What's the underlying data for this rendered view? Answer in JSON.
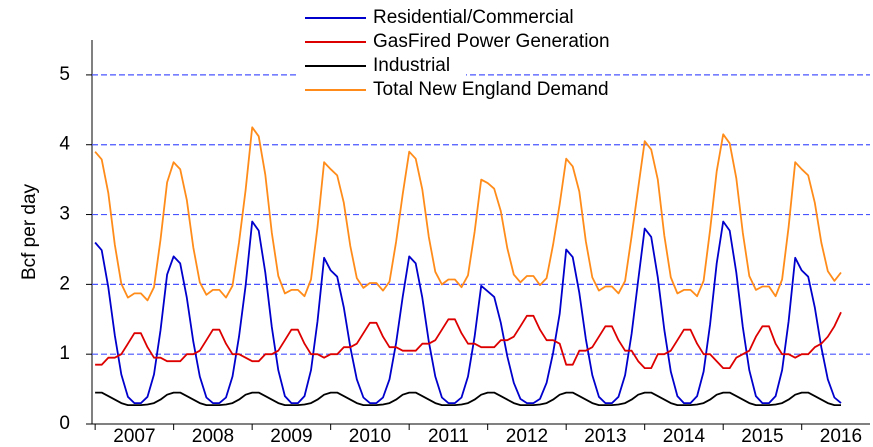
{
  "chart_data": {
    "type": "line",
    "y_label": "Bcf per day",
    "x": [
      2007.0,
      2007.083,
      2007.167,
      2007.25,
      2007.333,
      2007.417,
      2007.5,
      2007.583,
      2007.667,
      2007.75,
      2007.833,
      2007.917,
      2008.0,
      2008.083,
      2008.167,
      2008.25,
      2008.333,
      2008.417,
      2008.5,
      2008.583,
      2008.667,
      2008.75,
      2008.833,
      2008.917,
      2009.0,
      2009.083,
      2009.167,
      2009.25,
      2009.333,
      2009.417,
      2009.5,
      2009.583,
      2009.667,
      2009.75,
      2009.833,
      2009.917,
      2010.0,
      2010.083,
      2010.167,
      2010.25,
      2010.333,
      2010.417,
      2010.5,
      2010.583,
      2010.667,
      2010.75,
      2010.833,
      2010.917,
      2011.0,
      2011.083,
      2011.167,
      2011.25,
      2011.333,
      2011.417,
      2011.5,
      2011.583,
      2011.667,
      2011.75,
      2011.833,
      2011.917,
      2012.0,
      2012.083,
      2012.167,
      2012.25,
      2012.333,
      2012.417,
      2012.5,
      2012.583,
      2012.667,
      2012.75,
      2012.833,
      2012.917,
      2013.0,
      2013.083,
      2013.167,
      2013.25,
      2013.333,
      2013.417,
      2013.5,
      2013.583,
      2013.667,
      2013.75,
      2013.833,
      2013.917,
      2014.0,
      2014.083,
      2014.167,
      2014.25,
      2014.333,
      2014.417,
      2014.5,
      2014.583,
      2014.667,
      2014.75,
      2014.833,
      2014.917,
      2015.0,
      2015.083,
      2015.167,
      2015.25,
      2015.333,
      2015.417,
      2015.5,
      2015.583,
      2015.667,
      2015.75,
      2015.833,
      2015.917,
      2016.0,
      2016.083,
      2016.167,
      2016.25,
      2016.333,
      2016.417,
      2016.5
    ],
    "series": [
      {
        "name": "Residential/Commercial",
        "color": "#0000cc",
        "values": [
          2.6,
          2.49,
          1.96,
          1.27,
          0.71,
          0.39,
          0.3,
          0.3,
          0.39,
          0.71,
          1.34,
          2.14,
          2.4,
          2.3,
          1.81,
          1.18,
          0.68,
          0.38,
          0.3,
          0.3,
          0.38,
          0.68,
          1.25,
          1.98,
          2.9,
          2.77,
          2.17,
          1.39,
          0.77,
          0.4,
          0.3,
          0.3,
          0.4,
          0.77,
          1.47,
          2.38,
          2.2,
          2.11,
          1.67,
          1.1,
          0.64,
          0.38,
          0.3,
          0.3,
          0.38,
          0.64,
          1.16,
          1.82,
          2.4,
          2.3,
          1.81,
          1.18,
          0.68,
          0.38,
          0.3,
          0.3,
          0.38,
          0.68,
          1.25,
          1.98,
          1.9,
          1.82,
          1.45,
          0.97,
          0.59,
          0.36,
          0.3,
          0.3,
          0.36,
          0.59,
          1.02,
          1.58,
          2.5,
          2.39,
          1.88,
          1.22,
          0.7,
          0.39,
          0.3,
          0.3,
          0.39,
          0.7,
          1.29,
          2.06,
          2.8,
          2.68,
          2.1,
          1.35,
          0.75,
          0.4,
          0.3,
          0.3,
          0.4,
          0.75,
          1.43,
          2.3,
          2.9,
          2.77,
          2.17,
          1.39,
          0.77,
          0.4,
          0.3,
          0.3,
          0.4,
          0.77,
          1.47,
          2.38,
          2.2,
          2.11,
          1.67,
          1.1,
          0.64,
          0.38,
          0.3
        ]
      },
      {
        "name": "GasFired Power Generation",
        "color": "#dd0000",
        "values": [
          0.85,
          0.85,
          0.95,
          0.95,
          1.0,
          1.15,
          1.3,
          1.3,
          1.1,
          0.95,
          0.95,
          0.9,
          0.9,
          0.9,
          1.0,
          1.0,
          1.05,
          1.2,
          1.35,
          1.35,
          1.15,
          1.0,
          1.0,
          0.95,
          0.9,
          0.9,
          1.0,
          1.0,
          1.05,
          1.2,
          1.35,
          1.35,
          1.15,
          1.0,
          1.0,
          0.95,
          1.0,
          1.0,
          1.1,
          1.1,
          1.15,
          1.3,
          1.45,
          1.45,
          1.25,
          1.1,
          1.1,
          1.05,
          1.05,
          1.05,
          1.15,
          1.15,
          1.2,
          1.35,
          1.5,
          1.5,
          1.3,
          1.15,
          1.15,
          1.1,
          1.1,
          1.1,
          1.2,
          1.2,
          1.25,
          1.4,
          1.55,
          1.55,
          1.35,
          1.2,
          1.2,
          1.15,
          0.85,
          0.85,
          1.05,
          1.05,
          1.1,
          1.25,
          1.4,
          1.4,
          1.2,
          1.05,
          1.05,
          0.9,
          0.8,
          0.8,
          1.0,
          1.0,
          1.05,
          1.2,
          1.35,
          1.35,
          1.15,
          1.0,
          1.0,
          0.9,
          0.8,
          0.8,
          0.95,
          1.0,
          1.05,
          1.25,
          1.4,
          1.4,
          1.15,
          1.0,
          1.0,
          0.95,
          1.0,
          1.0,
          1.1,
          1.15,
          1.25,
          1.4,
          1.6
        ]
      },
      {
        "name": "Industrial",
        "color": "#000000",
        "values": [
          0.45,
          0.45,
          0.4,
          0.35,
          0.3,
          0.27,
          0.27,
          0.27,
          0.28,
          0.3,
          0.35,
          0.42,
          0.45,
          0.45,
          0.4,
          0.35,
          0.3,
          0.27,
          0.27,
          0.27,
          0.28,
          0.3,
          0.35,
          0.42,
          0.45,
          0.45,
          0.4,
          0.35,
          0.3,
          0.27,
          0.27,
          0.27,
          0.28,
          0.3,
          0.35,
          0.42,
          0.45,
          0.45,
          0.4,
          0.35,
          0.3,
          0.27,
          0.27,
          0.27,
          0.28,
          0.3,
          0.35,
          0.42,
          0.45,
          0.45,
          0.4,
          0.35,
          0.3,
          0.27,
          0.27,
          0.27,
          0.28,
          0.3,
          0.35,
          0.42,
          0.45,
          0.45,
          0.4,
          0.35,
          0.3,
          0.27,
          0.27,
          0.27,
          0.28,
          0.3,
          0.35,
          0.42,
          0.45,
          0.45,
          0.4,
          0.35,
          0.3,
          0.27,
          0.27,
          0.27,
          0.28,
          0.3,
          0.35,
          0.42,
          0.45,
          0.45,
          0.4,
          0.35,
          0.3,
          0.27,
          0.27,
          0.27,
          0.28,
          0.3,
          0.35,
          0.42,
          0.45,
          0.45,
          0.4,
          0.35,
          0.3,
          0.27,
          0.27,
          0.27,
          0.28,
          0.3,
          0.35,
          0.42,
          0.45,
          0.45,
          0.4,
          0.35,
          0.3,
          0.27,
          0.27
        ]
      },
      {
        "name": "Total New England Demand",
        "color": "#ff8c1a",
        "values": [
          3.9,
          3.79,
          3.31,
          2.57,
          2.01,
          1.81,
          1.87,
          1.87,
          1.77,
          1.96,
          2.64,
          3.46,
          3.75,
          3.65,
          3.21,
          2.53,
          2.03,
          1.85,
          1.92,
          1.92,
          1.81,
          1.98,
          2.6,
          3.35,
          4.25,
          4.12,
          3.57,
          2.74,
          2.12,
          1.87,
          1.92,
          1.92,
          1.83,
          2.07,
          2.82,
          3.75,
          3.65,
          3.56,
          3.17,
          2.55,
          2.09,
          1.95,
          2.02,
          2.02,
          1.91,
          2.04,
          2.61,
          3.29,
          3.9,
          3.8,
          3.36,
          2.68,
          2.18,
          2.0,
          2.07,
          2.07,
          1.96,
          2.13,
          2.75,
          3.5,
          3.45,
          3.37,
          3.05,
          2.52,
          2.14,
          2.03,
          2.12,
          2.12,
          1.99,
          2.09,
          2.57,
          3.15,
          3.8,
          3.69,
          3.33,
          2.62,
          2.1,
          1.91,
          1.97,
          1.97,
          1.87,
          2.05,
          2.69,
          3.38,
          4.05,
          3.93,
          3.5,
          2.7,
          2.1,
          1.87,
          1.92,
          1.92,
          1.83,
          2.05,
          2.78,
          3.62,
          4.15,
          4.02,
          3.52,
          2.74,
          2.12,
          1.92,
          1.97,
          1.97,
          1.83,
          2.07,
          2.82,
          3.75,
          3.65,
          3.56,
          3.17,
          2.6,
          2.19,
          2.05,
          2.17
        ]
      }
    ],
    "xlim": [
      2006.96,
      2016.87
    ],
    "xticks": [
      {
        "value": 2007,
        "label": "2007"
      },
      {
        "value": 2008,
        "label": "2008"
      },
      {
        "value": 2009,
        "label": "2009"
      },
      {
        "value": 2010,
        "label": "2010"
      },
      {
        "value": 2011,
        "label": "2011"
      },
      {
        "value": 2012,
        "label": "2012"
      },
      {
        "value": 2013,
        "label": "2013"
      },
      {
        "value": 2014,
        "label": "2014"
      },
      {
        "value": 2015,
        "label": "2015"
      },
      {
        "value": 2016,
        "label": "2016"
      }
    ],
    "ylim": [
      0,
      5.5
    ],
    "yticks": [
      0,
      1,
      2,
      3,
      4,
      5
    ],
    "grid": true
  }
}
